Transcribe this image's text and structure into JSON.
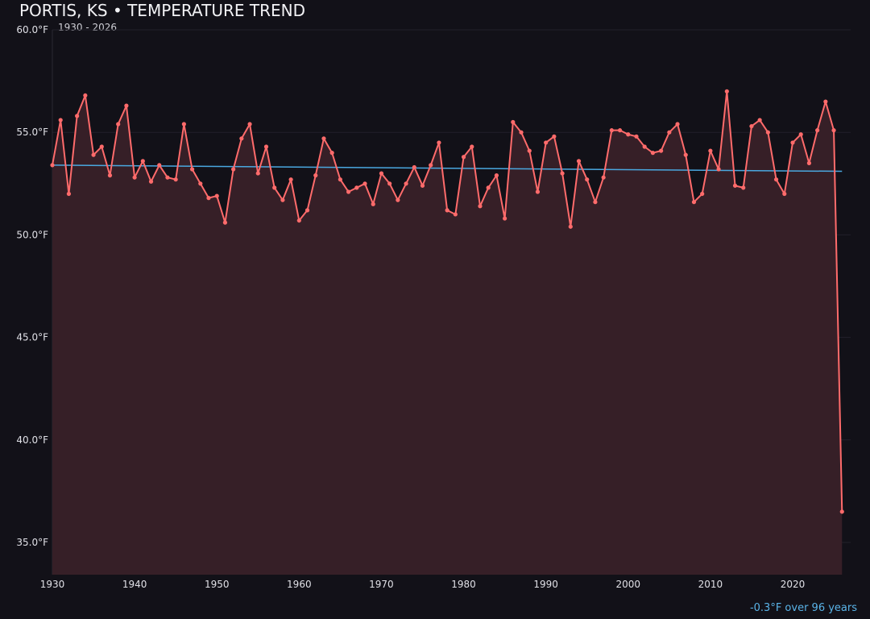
{
  "chart_data": {
    "type": "line",
    "title": "PORTIS, KS • TEMPERATURE TREND",
    "subtitle": "1930 - 2026",
    "annotation": "-0.3°F over 96 years",
    "xlim": [
      1930,
      2027
    ],
    "ylim": [
      33.4,
      60
    ],
    "grid": true,
    "x_ticks": [
      1930,
      1940,
      1950,
      1960,
      1970,
      1980,
      1990,
      2000,
      2010,
      2020
    ],
    "y_ticks": [
      35,
      40,
      45,
      50,
      55,
      60
    ],
    "y_tick_labels": [
      "35.0°F",
      "40.0°F",
      "45.0°F",
      "50.0°F",
      "55.0°F",
      "60.0°F"
    ],
    "colors": {
      "series": "#ff6b6b",
      "fill": "#361f27",
      "trend": "#4aa8e0",
      "background": "#121118",
      "grid": "#22212a"
    },
    "x": [
      1930,
      1931,
      1932,
      1933,
      1934,
      1935,
      1936,
      1937,
      1938,
      1939,
      1940,
      1941,
      1942,
      1943,
      1944,
      1945,
      1946,
      1947,
      1948,
      1949,
      1950,
      1951,
      1952,
      1953,
      1954,
      1955,
      1956,
      1957,
      1958,
      1959,
      1960,
      1961,
      1962,
      1963,
      1964,
      1965,
      1966,
      1967,
      1968,
      1969,
      1970,
      1971,
      1972,
      1973,
      1974,
      1975,
      1976,
      1977,
      1978,
      1979,
      1980,
      1981,
      1982,
      1983,
      1984,
      1985,
      1986,
      1987,
      1988,
      1989,
      1990,
      1991,
      1992,
      1993,
      1994,
      1995,
      1996,
      1997,
      1998,
      1999,
      2000,
      2001,
      2002,
      2003,
      2004,
      2005,
      2006,
      2007,
      2008,
      2009,
      2010,
      2011,
      2012,
      2013,
      2014,
      2015,
      2016,
      2017,
      2018,
      2019,
      2020,
      2021,
      2022,
      2023,
      2024,
      2025,
      2026
    ],
    "values": [
      53.4,
      55.6,
      52.0,
      55.8,
      56.8,
      53.9,
      54.3,
      52.9,
      55.4,
      56.3,
      52.8,
      53.6,
      52.6,
      53.4,
      52.8,
      52.7,
      55.4,
      53.2,
      52.5,
      51.8,
      51.9,
      50.6,
      53.2,
      54.7,
      55.4,
      53.0,
      54.3,
      52.3,
      51.7,
      52.7,
      50.7,
      51.2,
      52.9,
      54.7,
      54.0,
      52.7,
      52.1,
      52.3,
      52.5,
      51.5,
      53.0,
      52.5,
      51.7,
      52.5,
      53.3,
      52.4,
      53.4,
      54.5,
      51.2,
      51.0,
      53.8,
      54.3,
      51.4,
      52.3,
      52.9,
      50.8,
      55.5,
      55.0,
      54.1,
      52.1,
      54.5,
      54.8,
      53.0,
      50.4,
      53.6,
      52.7,
      51.6,
      52.8,
      55.1,
      55.1,
      54.9,
      54.8,
      54.3,
      54.0,
      54.1,
      55.0,
      55.4,
      53.9,
      51.6,
      52.0,
      54.1,
      53.2,
      57.0,
      52.4,
      52.3,
      55.3,
      55.6,
      55.0,
      52.7,
      52.0,
      54.5,
      54.9,
      53.5,
      55.1,
      56.5,
      55.1,
      36.5
    ],
    "trend": {
      "start": [
        1930,
        53.4
      ],
      "end": [
        2026,
        53.1
      ]
    }
  }
}
